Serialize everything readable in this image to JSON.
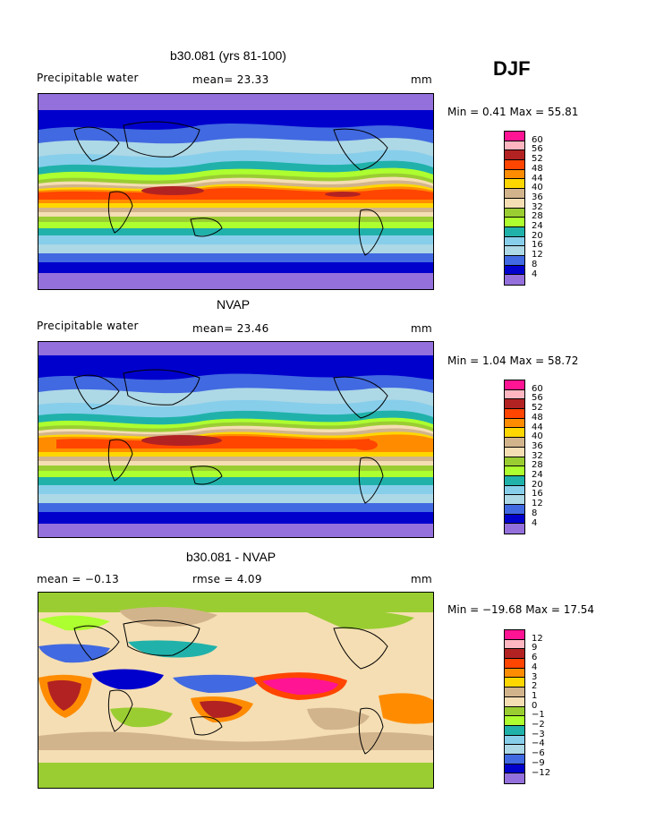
{
  "season": "DJF",
  "panels": [
    {
      "title": "b30.081 (yrs 81-100)",
      "variable": "Precipitable water",
      "stat1": "mean=  23.33",
      "stat2": "",
      "units": "mm",
      "minmax": "Min =   0.41 Max =  55.81",
      "colors": [
        "#ff1493",
        "#ffb6c1",
        "#b22222",
        "#ff4500",
        "#ff8c00",
        "#ffd700",
        "#d2b48c",
        "#f5deb3",
        "#9acd32",
        "#adff2f",
        "#20b2aa",
        "#87ceeb",
        "#add8e6",
        "#4169e1",
        "#0000cd",
        "#9370db"
      ],
      "levels": [
        "60",
        "56",
        "52",
        "48",
        "44",
        "40",
        "36",
        "32",
        "28",
        "24",
        "20",
        "16",
        "12",
        "8",
        "4"
      ]
    },
    {
      "title": "NVAP",
      "variable": "Precipitable water",
      "stat1": "mean=  23.46",
      "stat2": "",
      "units": "mm",
      "minmax": "Min =   1.04 Max =  58.72",
      "colors": [
        "#ff1493",
        "#ffb6c1",
        "#b22222",
        "#ff4500",
        "#ff8c00",
        "#ffd700",
        "#d2b48c",
        "#f5deb3",
        "#9acd32",
        "#adff2f",
        "#20b2aa",
        "#87ceeb",
        "#add8e6",
        "#4169e1",
        "#0000cd",
        "#9370db"
      ],
      "levels": [
        "60",
        "56",
        "52",
        "48",
        "44",
        "40",
        "36",
        "32",
        "28",
        "24",
        "20",
        "16",
        "12",
        "8",
        "4"
      ]
    },
    {
      "title": "b30.081 - NVAP",
      "variable": "",
      "stat1": "mean =   −0.13",
      "stat2": "rmse =    4.09",
      "units": "mm",
      "minmax": "Min = −19.68 Max =  17.54",
      "colors": [
        "#ff1493",
        "#ffb6c1",
        "#b22222",
        "#ff4500",
        "#ff8c00",
        "#ffd700",
        "#d2b48c",
        "#f5deb3",
        "#9acd32",
        "#adff2f",
        "#20b2aa",
        "#87ceeb",
        "#add8e6",
        "#4169e1",
        "#0000cd",
        "#9370db"
      ],
      "levels": [
        "12",
        "9",
        "6",
        "4",
        "3",
        "2",
        "1",
        "0",
        "−1",
        "−2",
        "−3",
        "−4",
        "−6",
        "−9",
        "−12"
      ]
    }
  ]
}
